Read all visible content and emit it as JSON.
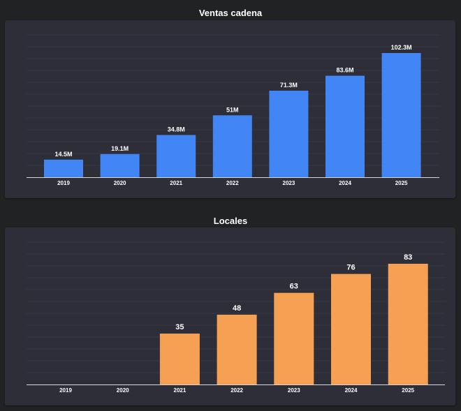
{
  "chart_data": [
    {
      "type": "bar",
      "title": "Ventas cadena",
      "categories": [
        "2019",
        "2020",
        "2021",
        "2022",
        "2023",
        "2024",
        "2025"
      ],
      "values": [
        14.5,
        19.1,
        34.8,
        51,
        71.3,
        83.6,
        102.3
      ],
      "data_labels": [
        "14.5M",
        "19.1M",
        "34.8M",
        "51M",
        "71.3M",
        "83.6M",
        "102.3M"
      ],
      "unit": "M",
      "ylim": [
        0,
        102.3
      ],
      "grid": true,
      "color": "#4285f4"
    },
    {
      "type": "bar",
      "title": "Locales",
      "categories": [
        "2019",
        "2020",
        "2021",
        "2022",
        "2023",
        "2024",
        "2025"
      ],
      "values": [
        null,
        null,
        35,
        48,
        63,
        76,
        83
      ],
      "data_labels": [
        "",
        "",
        "35",
        "48",
        "63",
        "76",
        "83"
      ],
      "ylim": [
        0,
        83
      ],
      "grid": true,
      "color": "#f5a052"
    }
  ]
}
